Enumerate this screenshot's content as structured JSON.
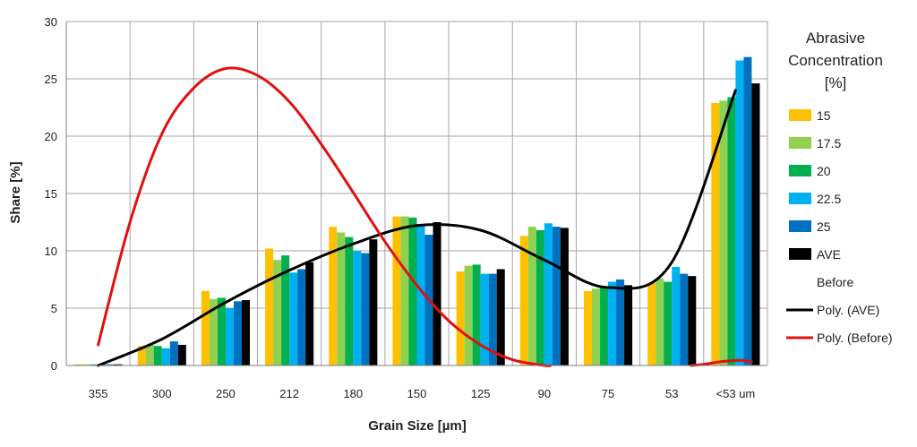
{
  "chart_data": {
    "type": "bar",
    "title": "",
    "xlabel": "Grain Size  [µm]",
    "ylabel": "Share  [%]",
    "ylim": [
      0,
      30
    ],
    "yticks": [
      0,
      5,
      10,
      15,
      20,
      25,
      30
    ],
    "grid": true,
    "legend_position": "right",
    "legend_title": [
      "Abrasive",
      "Concentration",
      "[%]"
    ],
    "categories": [
      "355",
      "300",
      "250",
      "212",
      "180",
      "150",
      "125",
      "90",
      "75",
      "53",
      "<53 um"
    ],
    "series": [
      {
        "name": "15",
        "color": "#ffc000",
        "values": [
          0.1,
          1.7,
          6.5,
          10.2,
          12.1,
          13.0,
          8.2,
          11.3,
          6.5,
          7.2,
          22.9
        ]
      },
      {
        "name": "17.5",
        "color": "#92d050",
        "values": [
          0.1,
          1.8,
          5.8,
          9.2,
          11.6,
          13.0,
          8.7,
          12.1,
          6.7,
          7.6,
          23.1
        ]
      },
      {
        "name": "20",
        "color": "#00b050",
        "values": [
          0.1,
          1.7,
          5.9,
          9.6,
          11.2,
          12.9,
          8.8,
          11.8,
          6.8,
          7.3,
          23.4
        ]
      },
      {
        "name": "22.5",
        "color": "#00b0f0",
        "values": [
          0.1,
          1.5,
          5.0,
          8.1,
          10.0,
          12.2,
          8.0,
          12.4,
          7.3,
          8.6,
          26.6
        ]
      },
      {
        "name": "25",
        "color": "#0070c0",
        "values": [
          0.1,
          2.1,
          5.6,
          8.4,
          9.8,
          11.4,
          8.0,
          12.1,
          7.5,
          8.0,
          26.9
        ]
      },
      {
        "name": "AVE",
        "color": "#000000",
        "values": [
          0.1,
          1.8,
          5.7,
          9.0,
          11.0,
          12.5,
          8.4,
          12.0,
          7.0,
          7.8,
          24.6
        ]
      }
    ],
    "lines": [
      {
        "name": "Before",
        "color": "#ffffff",
        "values": []
      },
      {
        "name": "Poly. (AVE)",
        "color": "#000000",
        "points": [
          [
            0,
            0
          ],
          [
            1,
            2.3
          ],
          [
            2,
            5.5
          ],
          [
            3,
            8.3
          ],
          [
            4,
            10.6
          ],
          [
            5,
            12.2
          ],
          [
            6,
            11.8
          ],
          [
            7,
            9.2
          ],
          [
            8,
            6.8
          ],
          [
            9,
            9.0
          ],
          [
            10,
            24.0
          ]
        ]
      },
      {
        "name": "Poly. (Before)",
        "color": "#e01010",
        "points": [
          [
            0,
            1.8
          ],
          [
            0.5,
            12.5
          ],
          [
            1,
            20.2
          ],
          [
            1.5,
            24.2
          ],
          [
            2,
            25.9
          ],
          [
            2.5,
            25.3
          ],
          [
            3,
            23.0
          ],
          [
            3.5,
            19.3
          ],
          [
            4,
            15.1
          ],
          [
            4.5,
            10.8
          ],
          [
            5,
            7.0
          ],
          [
            5.5,
            3.9
          ],
          [
            6,
            1.8
          ],
          [
            6.5,
            0.5
          ],
          [
            7,
            0
          ],
          [
            7.1,
            0
          ]
        ]
      },
      {
        "name": "Poly. (Before) tail",
        "legend": false,
        "color": "#e01010",
        "points": [
          [
            9.3,
            0
          ],
          [
            9.5,
            0.1
          ],
          [
            9.8,
            0.35
          ],
          [
            10.1,
            0.45
          ],
          [
            10.25,
            0.3
          ]
        ]
      }
    ]
  }
}
